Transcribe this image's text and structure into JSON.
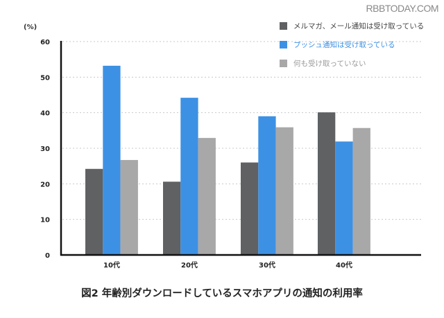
{
  "watermark": "RBBTODAY.COM",
  "chart_data": {
    "type": "bar",
    "title": "図2 年齢別ダウンロードしているスマホアプリの通知の利用率",
    "xlabel": "",
    "ylabel": "(%)",
    "ylim": [
      0,
      60
    ],
    "yticks": [
      0,
      10,
      20,
      30,
      40,
      50,
      60
    ],
    "grid": true,
    "legend_position": "top-right",
    "categories": [
      "10代",
      "20代",
      "30代",
      "40代"
    ],
    "series": [
      {
        "name": "メルマガ、メール通知は受け取っている",
        "color": "#5f6163",
        "values": [
          24.2,
          20.6,
          26.0,
          40.1
        ]
      },
      {
        "name": "プッシュ通知は受け取っている",
        "color": "#3d91e4",
        "values": [
          53.2,
          44.2,
          39.0,
          31.9
        ]
      },
      {
        "name": "何も受け取っていない",
        "color": "#a8a8a8",
        "values": [
          26.7,
          32.9,
          35.9,
          35.7
        ]
      }
    ]
  },
  "legend_text_colors": [
    "#444444",
    "#3d91e4",
    "#9a9a9a"
  ]
}
